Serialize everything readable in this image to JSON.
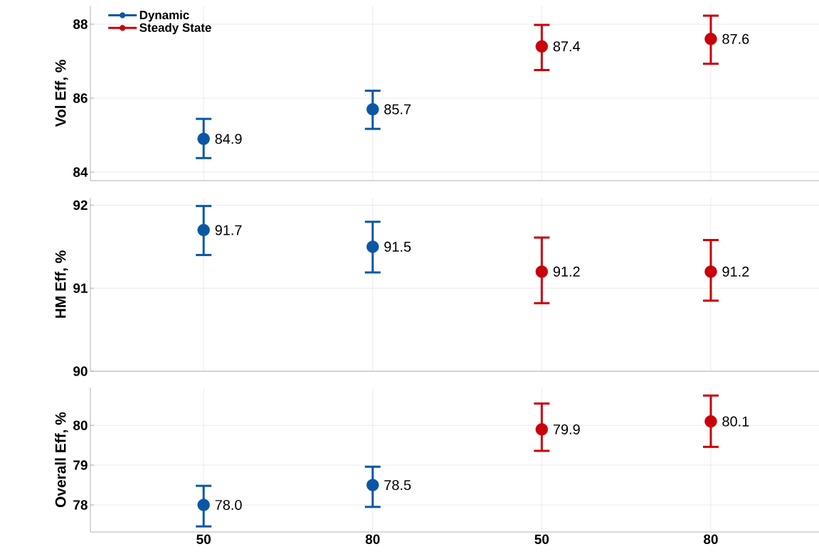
{
  "chart_data": [
    {
      "type": "scatter",
      "ylabel": "Vol Eff, %",
      "categories": [
        "50",
        "80",
        "50",
        "80"
      ],
      "ylim": [
        83.77,
        88.5
      ],
      "yticks": [
        84,
        86,
        88
      ],
      "grid": true,
      "legend": "top left",
      "marker": "circle",
      "tick_labels": "y",
      "series": [
        {
          "name": "Dynamic",
          "color": "#0b57a4",
          "values": [
            84.9,
            85.7,
            null,
            null
          ],
          "errors": [
            [
              84.38,
              85.44
            ],
            [
              85.17,
              86.2
            ],
            null,
            null
          ],
          "value_labels": [
            "84.9",
            "85.7",
            null,
            null
          ]
        },
        {
          "name": "Steady State",
          "color": "#c8000a",
          "values": [
            null,
            null,
            87.4,
            87.6
          ],
          "errors": [
            null,
            null,
            [
              86.76,
              87.98
            ],
            [
              86.93,
              88.23
            ]
          ],
          "value_labels": [
            null,
            null,
            "87.4",
            "87.6"
          ]
        }
      ]
    },
    {
      "type": "scatter",
      "ylabel": "HM Eff, %",
      "categories": [
        "50",
        "80",
        "50",
        "80"
      ],
      "ylim": [
        90,
        92.09
      ],
      "yticks": [
        90,
        91,
        92
      ],
      "grid": true,
      "marker": "circle",
      "tick_labels": "y",
      "series": [
        {
          "color": "#0b57a4",
          "values": [
            91.7,
            91.5,
            null,
            null
          ],
          "errors": [
            [
              91.4,
              91.99
            ],
            [
              91.19,
              91.8
            ],
            null,
            null
          ],
          "value_labels": [
            "91.7",
            "91.5",
            null,
            null
          ]
        },
        {
          "color": "#c8000a",
          "values": [
            null,
            null,
            91.2,
            91.2
          ],
          "errors": [
            null,
            null,
            [
              90.82,
              91.61
            ],
            [
              90.85,
              91.58
            ]
          ],
          "value_labels": [
            null,
            null,
            "91.2",
            "91.2"
          ]
        }
      ]
    },
    {
      "type": "scatter",
      "ylabel": "Overall Eff, %",
      "categories": [
        "50",
        "80",
        "50",
        "80"
      ],
      "ylim": [
        77.32,
        80.95
      ],
      "yticks": [
        78,
        79,
        80
      ],
      "grid": true,
      "marker": "circle",
      "series": [
        {
          "color": "#0b57a4",
          "values": [
            78.0,
            78.5,
            null,
            null
          ],
          "errors": [
            [
              77.46,
              78.48
            ],
            [
              77.95,
              78.96
            ],
            null,
            null
          ],
          "value_labels": [
            "78.0",
            "78.5",
            null,
            null
          ]
        },
        {
          "color": "#c8000a",
          "values": [
            null,
            null,
            79.9,
            80.1
          ],
          "errors": [
            null,
            null,
            [
              79.36,
              80.55
            ],
            [
              79.46,
              80.75
            ]
          ],
          "value_labels": [
            null,
            null,
            "79.9",
            "80.1"
          ]
        }
      ]
    }
  ]
}
